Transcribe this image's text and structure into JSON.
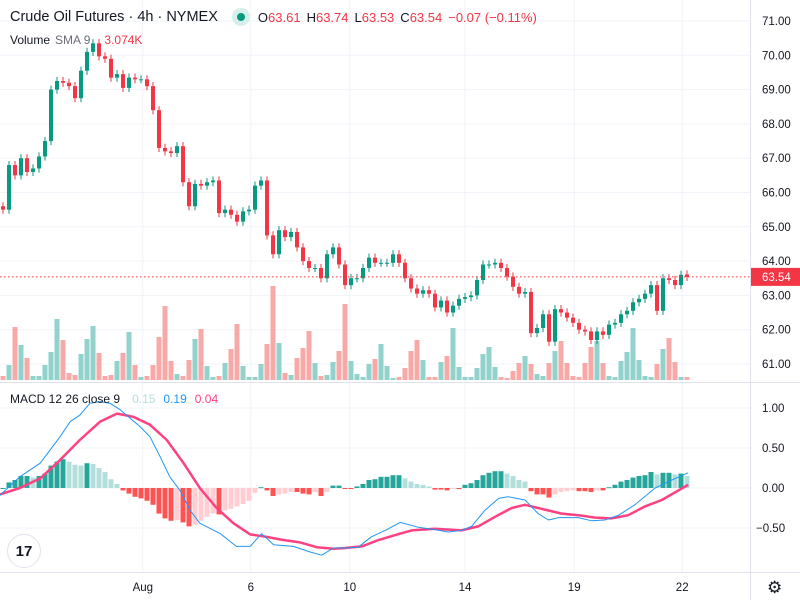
{
  "header": {
    "title": "Crude Oil Futures · 4h · NYMEX",
    "ohlc": {
      "o_label": "O",
      "o": "63.61",
      "h_label": "H",
      "h": "63.74",
      "l_label": "L",
      "l": "63.53",
      "c_label": "C",
      "c": "63.54",
      "change": "−0.07 (−0.11%)"
    },
    "market_status_icon": "market-open-dot"
  },
  "volume_legend": {
    "name": "Volume",
    "sma": "SMA 9",
    "value": "3.074K"
  },
  "macd_legend": {
    "name": "MACD 12 26 close 9",
    "hist": "0.15",
    "macd": "0.19",
    "signal": "0.04"
  },
  "price_axis": [
    "71.00",
    "70.00",
    "69.00",
    "68.00",
    "67.00",
    "66.00",
    "65.00",
    "64.00",
    "63.00",
    "62.00",
    "61.00"
  ],
  "macd_axis": [
    "1.00",
    "0.50",
    "0.00",
    "−0.50"
  ],
  "time_axis": [
    {
      "label": "Aug",
      "bar": 23.3
    },
    {
      "label": "6",
      "bar": 41.3
    },
    {
      "label": "10",
      "bar": 57.8
    },
    {
      "label": "14",
      "bar": 77
    },
    {
      "label": "19",
      "bar": 95.2
    },
    {
      "label": "22",
      "bar": 113.2
    }
  ],
  "current_price": "63.54",
  "colors": {
    "up": "#089981",
    "down": "#f23645",
    "vol_up": "#92d2cc",
    "vol_down": "#f7a9a7",
    "hist_up_strong": "#26a69a",
    "hist_up_weak": "#b2dfdb",
    "hist_down_strong": "#ff5252",
    "hist_down_weak": "#ffcdd2",
    "macd": "#2196f3",
    "signal": "#ff4081"
  },
  "chart_data": {
    "type": "candlestick",
    "title": "Crude Oil Futures · 4h · NYMEX",
    "ylim": [
      60.6,
      71.5
    ],
    "first_open": 65.6,
    "close": [
      65.5,
      66.8,
      66.5,
      67.0,
      66.6,
      66.7,
      67.05,
      67.5,
      69.0,
      69.25,
      69.2,
      69.1,
      68.75,
      69.55,
      70.1,
      70.35,
      69.97,
      69.9,
      69.35,
      69.45,
      69.05,
      69.35,
      69.3,
      69.3,
      69.1,
      68.4,
      67.3,
      67.2,
      67.15,
      67.35,
      66.3,
      65.6,
      66.25,
      66.2,
      66.3,
      66.35,
      65.4,
      65.5,
      65.35,
      65.15,
      65.45,
      65.5,
      66.2,
      66.35,
      64.75,
      64.2,
      64.9,
      64.7,
      64.85,
      64.4,
      64.0,
      63.8,
      63.8,
      63.5,
      64.2,
      64.4,
      63.9,
      63.3,
      63.5,
      63.5,
      63.8,
      64.1,
      63.95,
      63.95,
      63.95,
      64.2,
      63.95,
      63.5,
      63.2,
      63.05,
      63.15,
      63.05,
      62.65,
      62.85,
      62.5,
      62.7,
      62.9,
      62.95,
      63.0,
      63.45,
      63.9,
      63.9,
      63.95,
      63.8,
      63.55,
      63.25,
      63.05,
      63.1,
      61.9,
      62.05,
      62.45,
      61.65,
      62.6,
      62.5,
      62.35,
      62.2,
      62.0,
      61.95,
      61.7,
      61.95,
      61.85,
      62.15,
      62.2,
      62.45,
      62.55,
      62.8,
      62.9,
      63.05,
      63.3,
      62.55,
      63.5,
      63.45,
      63.3,
      63.6,
      63.54
    ],
    "volume": [
      4,
      15,
      53,
      35,
      22,
      4,
      4,
      15,
      28,
      61,
      40,
      7,
      5,
      26,
      41,
      54,
      27,
      4,
      5,
      19,
      27,
      48,
      15,
      3,
      4,
      15,
      43,
      74,
      19,
      6,
      4,
      20,
      41,
      51,
      14,
      3,
      4,
      17,
      31,
      56,
      14,
      3,
      3,
      16,
      36,
      94,
      37,
      7,
      5,
      22,
      32,
      49,
      17,
      4,
      5,
      18,
      29,
      76,
      19,
      6,
      3,
      16,
      21,
      36,
      14,
      2,
      3,
      12,
      29,
      40,
      20,
      3,
      3,
      18,
      24,
      52,
      13,
      3,
      3,
      12,
      26,
      33,
      13,
      3,
      2,
      9,
      17,
      24,
      16,
      6,
      4,
      17,
      29,
      39,
      17,
      4,
      3,
      17,
      33,
      39,
      17,
      4,
      3,
      19,
      28,
      52,
      20,
      4,
      3,
      16,
      31,
      42,
      18,
      3,
      3
    ],
    "macd_hist": [
      0,
      0.07,
      0.1,
      0.15,
      0.15,
      0.13,
      0.15,
      0.18,
      0.28,
      0.33,
      0.36,
      0.33,
      0.29,
      0.28,
      0.31,
      0.3,
      0.25,
      0.2,
      0.11,
      0.05,
      -0.03,
      -0.07,
      -0.11,
      -0.13,
      -0.16,
      -0.21,
      -0.32,
      -0.38,
      -0.41,
      -0.4,
      -0.43,
      -0.48,
      -0.46,
      -0.41,
      -0.36,
      -0.32,
      -0.33,
      -0.28,
      -0.26,
      -0.23,
      -0.2,
      -0.16,
      -0.06,
      0.01,
      -0.03,
      -0.1,
      -0.08,
      -0.07,
      -0.05,
      -0.05,
      -0.07,
      -0.08,
      -0.05,
      -0.1,
      -0.05,
      0.03,
      0.03,
      -0.01,
      -0.01,
      0.02,
      0.05,
      0.1,
      0.11,
      0.14,
      0.14,
      0.16,
      0.16,
      0.12,
      0.08,
      0.05,
      0.04,
      0.02,
      -0.02,
      -0.02,
      -0.03,
      -0.01,
      -0.01,
      0.04,
      0.06,
      0.1,
      0.16,
      0.19,
      0.21,
      0.21,
      0.18,
      0.15,
      0.1,
      0.08,
      -0.04,
      -0.08,
      -0.08,
      -0.12,
      -0.08,
      -0.05,
      -0.04,
      -0.03,
      -0.04,
      -0.04,
      -0.05,
      -0.03,
      -0.03,
      0.01,
      0.04,
      0.08,
      0.1,
      0.13,
      0.15,
      0.16,
      0.2,
      0.17,
      0.19,
      0.19,
      0.17,
      0.18,
      0.15
    ],
    "macd_line": [
      [
        -0.5,
        -0.09
      ],
      [
        2.8,
        0.14
      ],
      [
        6.2,
        0.31
      ],
      [
        9.5,
        0.64
      ],
      [
        11.2,
        0.83
      ],
      [
        12.8,
        0.91
      ],
      [
        14.5,
        1.06
      ],
      [
        16.2,
        1.08
      ],
      [
        17.8,
        1.06
      ],
      [
        19.5,
        0.98
      ],
      [
        22.8,
        0.77
      ],
      [
        24.5,
        0.64
      ],
      [
        26.2,
        0.39
      ],
      [
        27.8,
        0.14
      ],
      [
        29.5,
        -0.03
      ],
      [
        31.2,
        -0.28
      ],
      [
        32.8,
        -0.44
      ],
      [
        36.2,
        -0.57
      ],
      [
        38.9,
        -0.73
      ],
      [
        41.2,
        -0.73
      ],
      [
        43.1,
        -0.57
      ],
      [
        45.1,
        -0.71
      ],
      [
        48.4,
        -0.73
      ],
      [
        51.2,
        -0.8
      ],
      [
        53.1,
        -0.84
      ],
      [
        55.1,
        -0.75
      ],
      [
        57,
        -0.75
      ],
      [
        59.2,
        -0.74
      ],
      [
        61.4,
        -0.61
      ],
      [
        63.7,
        -0.53
      ],
      [
        66.2,
        -0.43
      ],
      [
        69.2,
        -0.49
      ],
      [
        72,
        -0.52
      ],
      [
        74.2,
        -0.55
      ],
      [
        76.4,
        -0.53
      ],
      [
        78.1,
        -0.48
      ],
      [
        80.3,
        -0.28
      ],
      [
        82.6,
        -0.13
      ],
      [
        84.2,
        -0.11
      ],
      [
        87,
        -0.15
      ],
      [
        89.2,
        -0.32
      ],
      [
        90.9,
        -0.4
      ],
      [
        92.6,
        -0.37
      ],
      [
        95.9,
        -0.37
      ],
      [
        98.1,
        -0.41
      ],
      [
        100.3,
        -0.4
      ],
      [
        102.6,
        -0.34
      ],
      [
        105.3,
        -0.21
      ],
      [
        108.7,
        0.0
      ],
      [
        110.9,
        0.08
      ],
      [
        114.2,
        0.19
      ]
    ],
    "signal_line": [
      [
        -0.5,
        -0.08
      ],
      [
        2.8,
        0.0
      ],
      [
        6.2,
        0.12
      ],
      [
        9.5,
        0.35
      ],
      [
        12.8,
        0.6
      ],
      [
        16.2,
        0.83
      ],
      [
        19,
        0.93
      ],
      [
        21.7,
        0.89
      ],
      [
        24.5,
        0.79
      ],
      [
        27.3,
        0.6
      ],
      [
        30.1,
        0.31
      ],
      [
        32.8,
        0.0
      ],
      [
        35.6,
        -0.25
      ],
      [
        38.4,
        -0.44
      ],
      [
        41.2,
        -0.58
      ],
      [
        43.9,
        -0.61
      ],
      [
        46.7,
        -0.65
      ],
      [
        49.5,
        -0.68
      ],
      [
        52.3,
        -0.74
      ],
      [
        55.1,
        -0.76
      ],
      [
        57,
        -0.75
      ],
      [
        59.8,
        -0.73
      ],
      [
        62.6,
        -0.65
      ],
      [
        65.3,
        -0.59
      ],
      [
        68.1,
        -0.53
      ],
      [
        72,
        -0.51
      ],
      [
        76.4,
        -0.53
      ],
      [
        79.2,
        -0.48
      ],
      [
        82,
        -0.36
      ],
      [
        84.8,
        -0.25
      ],
      [
        87,
        -0.21
      ],
      [
        90.3,
        -0.27
      ],
      [
        93.1,
        -0.32
      ],
      [
        95.9,
        -0.34
      ],
      [
        98.7,
        -0.37
      ],
      [
        101.4,
        -0.38
      ],
      [
        104.2,
        -0.34
      ],
      [
        107,
        -0.23
      ],
      [
        109.8,
        -0.15
      ],
      [
        114.2,
        0.04
      ]
    ],
    "macd_ylim": [
      -1.05,
      1.1
    ]
  }
}
